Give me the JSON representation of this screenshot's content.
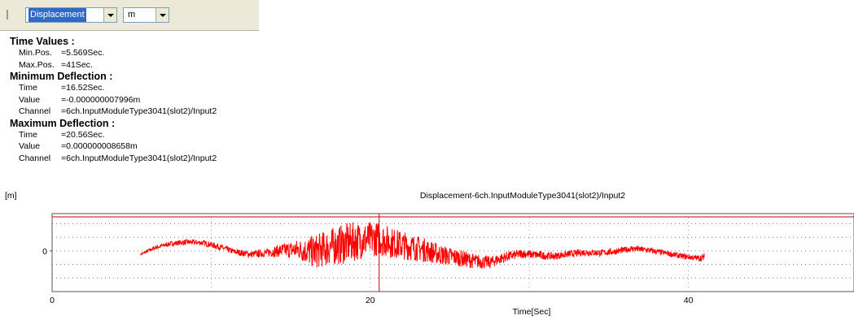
{
  "toolbar": {
    "quantity": "Displacement",
    "unit": "m"
  },
  "time_values": {
    "heading": "Time Values :",
    "min_label": "Min.Pos.",
    "min_value": "=5.569Sec.",
    "max_label": "Max.Pos.",
    "max_value": "=41Sec."
  },
  "min_deflection": {
    "heading": "Minimum Deflection :",
    "time_label": "Time",
    "time_value": "=16.52Sec.",
    "value_label": "Value",
    "value_value": "=-0.000000007996m",
    "channel_label": "Channel",
    "channel_value": "=6ch.InputModuleType3041(slot2)/Input2"
  },
  "max_deflection": {
    "heading": "Maximum Deflection :",
    "time_label": "Time",
    "time_value": "=20.56Sec.",
    "value_label": "Value",
    "value_value": "=0.000000008658m",
    "channel_label": "Channel",
    "channel_value": "=6ch.InputModuleType3041(slot2)/Input2"
  },
  "chart_data": {
    "type": "line",
    "title": "Displacement-6ch.InputModuleType3041(slot2)/Input2",
    "xlabel": "Time[Sec]",
    "ylabel": "[m]",
    "xlim": [
      0,
      50
    ],
    "ylim": [
      -1.2e-08,
      1.1e-08
    ],
    "x_ticks": [
      0,
      20,
      40
    ],
    "x_tick_labels": [
      "0",
      "20",
      "40"
    ],
    "y_ticks": [
      0
    ],
    "y_tick_labels": [
      "0"
    ],
    "grid": true,
    "cursor_time": 20.56,
    "series": [
      {
        "color": "#ff0000",
        "x": [
          5.57,
          6.5,
          7.5,
          8.5,
          9.5,
          10.5,
          11.5,
          12.5,
          13.5,
          14.5,
          15.5,
          16.5,
          17.5,
          18.5,
          19.5,
          20.5,
          21.5,
          22.5,
          23.5,
          24.5,
          25.5,
          26.5,
          27.5,
          28.5,
          29.5,
          30.5,
          31.5,
          32.5,
          33.5,
          34.5,
          35.5,
          36.5,
          37.5,
          38.5,
          39.5,
          40.5,
          41.0
        ],
        "y": [
          -1e-09,
          1e-09,
          2.2e-09,
          2.6e-09,
          2.4e-09,
          1.2e-09,
          -3e-10,
          -1e-09,
          -6e-10,
          2e-10,
          4e-10,
          -3e-10,
          1.2e-09,
          2.2e-09,
          3.2e-09,
          3.6e-09,
          2.2e-09,
          1.2e-09,
          2e-10,
          -1.2e-09,
          -2e-09,
          -3e-09,
          -3.4e-09,
          -1.8e-09,
          -8e-10,
          -1.2e-09,
          -1.6e-09,
          -9e-10,
          -4e-10,
          -6e-10,
          -1e-10,
          7e-10,
          2e-10,
          -6e-10,
          -1.5e-09,
          -2.1e-09,
          -2e-09
        ],
        "noise_envelope": [
          3e-10,
          6e-10,
          7e-10,
          8e-10,
          8e-10,
          9e-10,
          9e-10,
          1e-09,
          1.2e-09,
          2e-09,
          3e-09,
          5e-09,
          5.5e-09,
          6e-09,
          5.5e-09,
          5e-09,
          4.5e-09,
          4e-09,
          3.5e-09,
          3e-09,
          2.5e-09,
          2.2e-09,
          1.8e-09,
          1.5e-09,
          1.3e-09,
          1.2e-09,
          1.1e-09,
          1e-09,
          1e-09,
          1e-09,
          9e-10,
          9e-10,
          9e-10,
          8e-10,
          8e-10,
          8e-10,
          1.2e-09
        ]
      }
    ]
  }
}
